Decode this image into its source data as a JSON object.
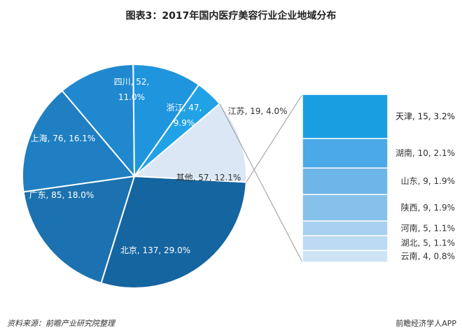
{
  "chart_data": {
    "type": "pie",
    "title": "图表3：2017年国内医疗美容行业企业地域分布",
    "slices": [
      {
        "label": "北京",
        "value": 137,
        "percent": "29.0%",
        "color": "#1565a0"
      },
      {
        "label": "广东",
        "value": 85,
        "percent": "18.0%",
        "color": "#1c72b0"
      },
      {
        "label": "上海",
        "value": 76,
        "percent": "16.1%",
        "color": "#1f7fc2"
      },
      {
        "label": "四川",
        "value": 52,
        "percent": "11.0%",
        "color": "#2088cf"
      },
      {
        "label": "浙江",
        "value": 47,
        "percent": "9.9%",
        "color": "#1f95dd"
      },
      {
        "label": "江苏",
        "value": 19,
        "percent": "4.0%",
        "color": "#22a2e6"
      },
      {
        "label": "其他",
        "value": 57,
        "percent": "12.1%",
        "color": "#dbe7f5"
      }
    ],
    "breakdown": {
      "of": "其他",
      "items": [
        {
          "label": "天津",
          "value": 15,
          "percent": "3.2%",
          "color": "#1a9ee2"
        },
        {
          "label": "湖南",
          "value": 10,
          "percent": "2.1%",
          "color": "#4aa9e6"
        },
        {
          "label": "山东",
          "value": 9,
          "percent": "1.9%",
          "color": "#6fb6e8"
        },
        {
          "label": "陕西",
          "value": 9,
          "percent": "1.9%",
          "color": "#86c1ec"
        },
        {
          "label": "河南",
          "value": 5,
          "percent": "1.1%",
          "color": "#a8d0f0"
        },
        {
          "label": "湖北",
          "value": 5,
          "percent": "1.1%",
          "color": "#bcdaf3"
        },
        {
          "label": "云南",
          "value": 4,
          "percent": "0.8%",
          "color": "#cfe3f6"
        }
      ]
    }
  },
  "source": "资料来源：前瞻产业研究院整理",
  "brand": "前瞻经济学人APP"
}
